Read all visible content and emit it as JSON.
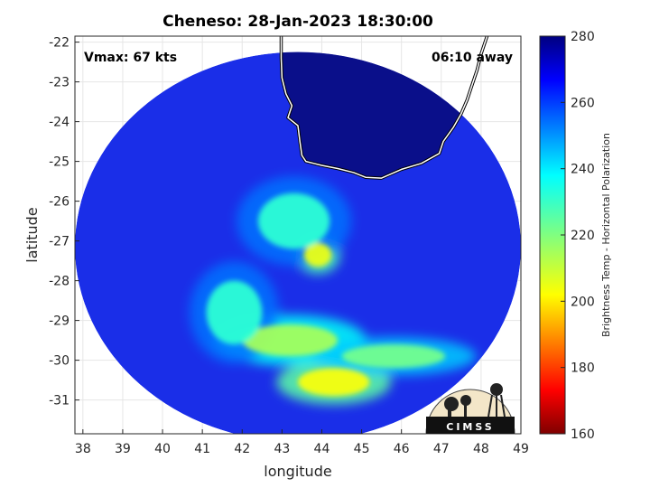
{
  "chart_data": {
    "type": "heatmap",
    "title": "Cheneso: 28-Jan-2023 18:30:00",
    "xlabel": "longitude",
    "ylabel": "latitude",
    "xlim": [
      37.8,
      49.0
    ],
    "ylim": [
      -31.85,
      -21.85
    ],
    "xticks": [
      38,
      39,
      40,
      41,
      42,
      43,
      44,
      45,
      46,
      47,
      48,
      49
    ],
    "yticks": [
      -22,
      -23,
      -24,
      -25,
      -26,
      -27,
      -28,
      -29,
      -30,
      -31
    ],
    "grid": true,
    "annotations": {
      "vmax": "Vmax: 67 kts",
      "time_offset": "06:10 away"
    },
    "colorbar": {
      "label": "Brightness Temp - Horizontal Polarization",
      "min": 160,
      "max": 280,
      "ticks": [
        160,
        180,
        200,
        220,
        240,
        260,
        280
      ],
      "colormap": "jet"
    },
    "swath": {
      "center_lon": 43.4,
      "center_lat": -27.15,
      "radius_lon": 5.6,
      "radius_lat": 4.9
    },
    "coastline": [
      [
        48.15,
        -21.85
      ],
      [
        48.0,
        -22.3
      ],
      [
        47.9,
        -22.7
      ],
      [
        47.8,
        -23.0
      ],
      [
        47.65,
        -23.45
      ],
      [
        47.5,
        -23.8
      ],
      [
        47.3,
        -24.15
      ],
      [
        47.05,
        -24.5
      ],
      [
        46.95,
        -24.8
      ],
      [
        46.5,
        -25.05
      ],
      [
        46.0,
        -25.2
      ],
      [
        45.5,
        -25.42
      ],
      [
        45.1,
        -25.4
      ],
      [
        44.8,
        -25.28
      ],
      [
        44.4,
        -25.18
      ],
      [
        44.0,
        -25.1
      ],
      [
        43.8,
        -25.05
      ],
      [
        43.6,
        -25.0
      ],
      [
        43.5,
        -24.85
      ],
      [
        43.45,
        -24.5
      ],
      [
        43.4,
        -24.1
      ],
      [
        43.15,
        -23.9
      ],
      [
        43.25,
        -23.6
      ],
      [
        43.1,
        -23.3
      ],
      [
        43.0,
        -22.9
      ],
      [
        42.98,
        -22.4
      ],
      [
        42.98,
        -21.85
      ]
    ],
    "features": [
      {
        "lon": 43.9,
        "lat": -27.35,
        "temp": 205,
        "rlon": 0.35,
        "rlat": 0.3
      },
      {
        "lon": 44.3,
        "lat": -30.55,
        "temp": 203,
        "rlon": 0.9,
        "rlat": 0.35
      },
      {
        "lon": 43.2,
        "lat": -29.5,
        "temp": 215,
        "rlon": 1.2,
        "rlat": 0.4
      },
      {
        "lon": 45.8,
        "lat": -29.9,
        "temp": 222,
        "rlon": 1.3,
        "rlat": 0.3
      },
      {
        "lon": 41.8,
        "lat": -28.8,
        "temp": 232,
        "rlon": 0.7,
        "rlat": 0.8
      },
      {
        "lon": 43.3,
        "lat": -26.5,
        "temp": 232,
        "rlon": 0.9,
        "rlat": 0.7
      }
    ]
  },
  "logo": {
    "text": "CIMSS"
  }
}
